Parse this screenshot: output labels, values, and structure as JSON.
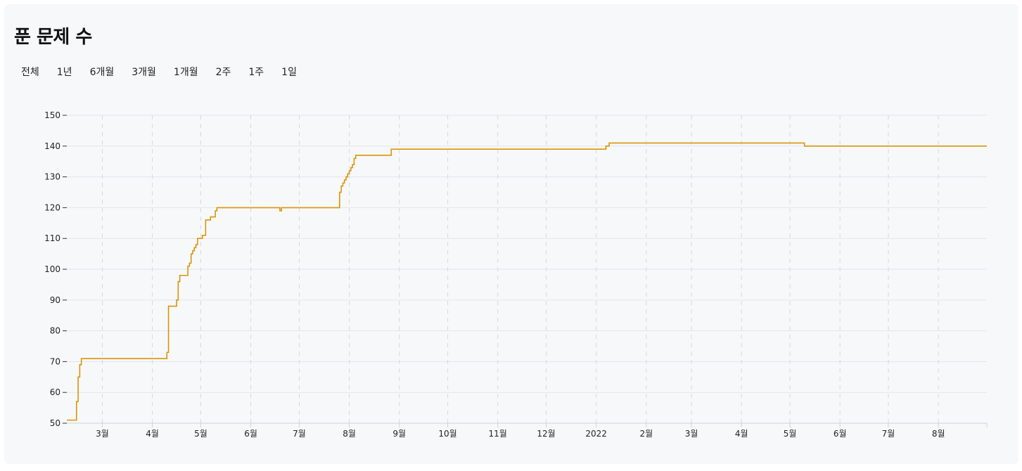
{
  "title": "푼 문제 수",
  "range_buttons": [
    "전체",
    "1년",
    "6개월",
    "3개월",
    "1개월",
    "2주",
    "1주",
    "1일"
  ],
  "colors": {
    "line": "#d99607",
    "grid": "#e3e5e8",
    "vgrid": "#d6d8dc",
    "axis": "#d0d2d6"
  },
  "chart_data": {
    "type": "line",
    "step": true,
    "title": "",
    "xlabel": "",
    "ylabel": "",
    "ylim": [
      50,
      150
    ],
    "xlim": [
      "2021-02-07",
      "2022-08-31"
    ],
    "grid": true,
    "y_ticks": [
      50,
      60,
      70,
      80,
      90,
      100,
      110,
      120,
      130,
      140,
      150
    ],
    "x_ticks": [
      {
        "date": "2021-03-01",
        "label": "3월"
      },
      {
        "date": "2021-04-01",
        "label": "4월"
      },
      {
        "date": "2021-05-01",
        "label": "5월"
      },
      {
        "date": "2021-06-01",
        "label": "6월"
      },
      {
        "date": "2021-07-01",
        "label": "7월"
      },
      {
        "date": "2021-08-01",
        "label": "8월"
      },
      {
        "date": "2021-09-01",
        "label": "9월"
      },
      {
        "date": "2021-10-01",
        "label": "10월"
      },
      {
        "date": "2021-11-01",
        "label": "11월"
      },
      {
        "date": "2021-12-01",
        "label": "12월"
      },
      {
        "date": "2022-01-01",
        "label": "2022"
      },
      {
        "date": "2022-02-01",
        "label": "2월"
      },
      {
        "date": "2022-03-01",
        "label": "3월"
      },
      {
        "date": "2022-04-01",
        "label": "4월"
      },
      {
        "date": "2022-05-01",
        "label": "5월"
      },
      {
        "date": "2022-06-01",
        "label": "6월"
      },
      {
        "date": "2022-07-01",
        "label": "7월"
      },
      {
        "date": "2022-08-01",
        "label": "8월"
      }
    ],
    "series": [
      {
        "points": [
          [
            "2021-02-07",
            51
          ],
          [
            "2021-02-13",
            57
          ],
          [
            "2021-02-14",
            65
          ],
          [
            "2021-02-15",
            69
          ],
          [
            "2021-02-16",
            71
          ],
          [
            "2021-04-10",
            73
          ],
          [
            "2021-04-11",
            88
          ],
          [
            "2021-04-16",
            90
          ],
          [
            "2021-04-17",
            96
          ],
          [
            "2021-04-18",
            98
          ],
          [
            "2021-04-23",
            101
          ],
          [
            "2021-04-24",
            102
          ],
          [
            "2021-04-25",
            105
          ],
          [
            "2021-04-26",
            106
          ],
          [
            "2021-04-27",
            107
          ],
          [
            "2021-04-28",
            108
          ],
          [
            "2021-04-29",
            110
          ],
          [
            "2021-05-02",
            111
          ],
          [
            "2021-05-04",
            116
          ],
          [
            "2021-05-07",
            117
          ],
          [
            "2021-05-10",
            119
          ],
          [
            "2021-05-11",
            120
          ],
          [
            "2021-06-19",
            119
          ],
          [
            "2021-06-20",
            120
          ],
          [
            "2021-07-26",
            125
          ],
          [
            "2021-07-27",
            127
          ],
          [
            "2021-07-28",
            128
          ],
          [
            "2021-07-29",
            129
          ],
          [
            "2021-07-30",
            130
          ],
          [
            "2021-07-31",
            131
          ],
          [
            "2021-08-01",
            132
          ],
          [
            "2021-08-02",
            133
          ],
          [
            "2021-08-03",
            134
          ],
          [
            "2021-08-04",
            136
          ],
          [
            "2021-08-05",
            137
          ],
          [
            "2021-08-27",
            139
          ],
          [
            "2022-01-07",
            140
          ],
          [
            "2022-01-09",
            141
          ],
          [
            "2022-05-10",
            140
          ],
          [
            "2022-08-31",
            140
          ]
        ]
      }
    ]
  }
}
